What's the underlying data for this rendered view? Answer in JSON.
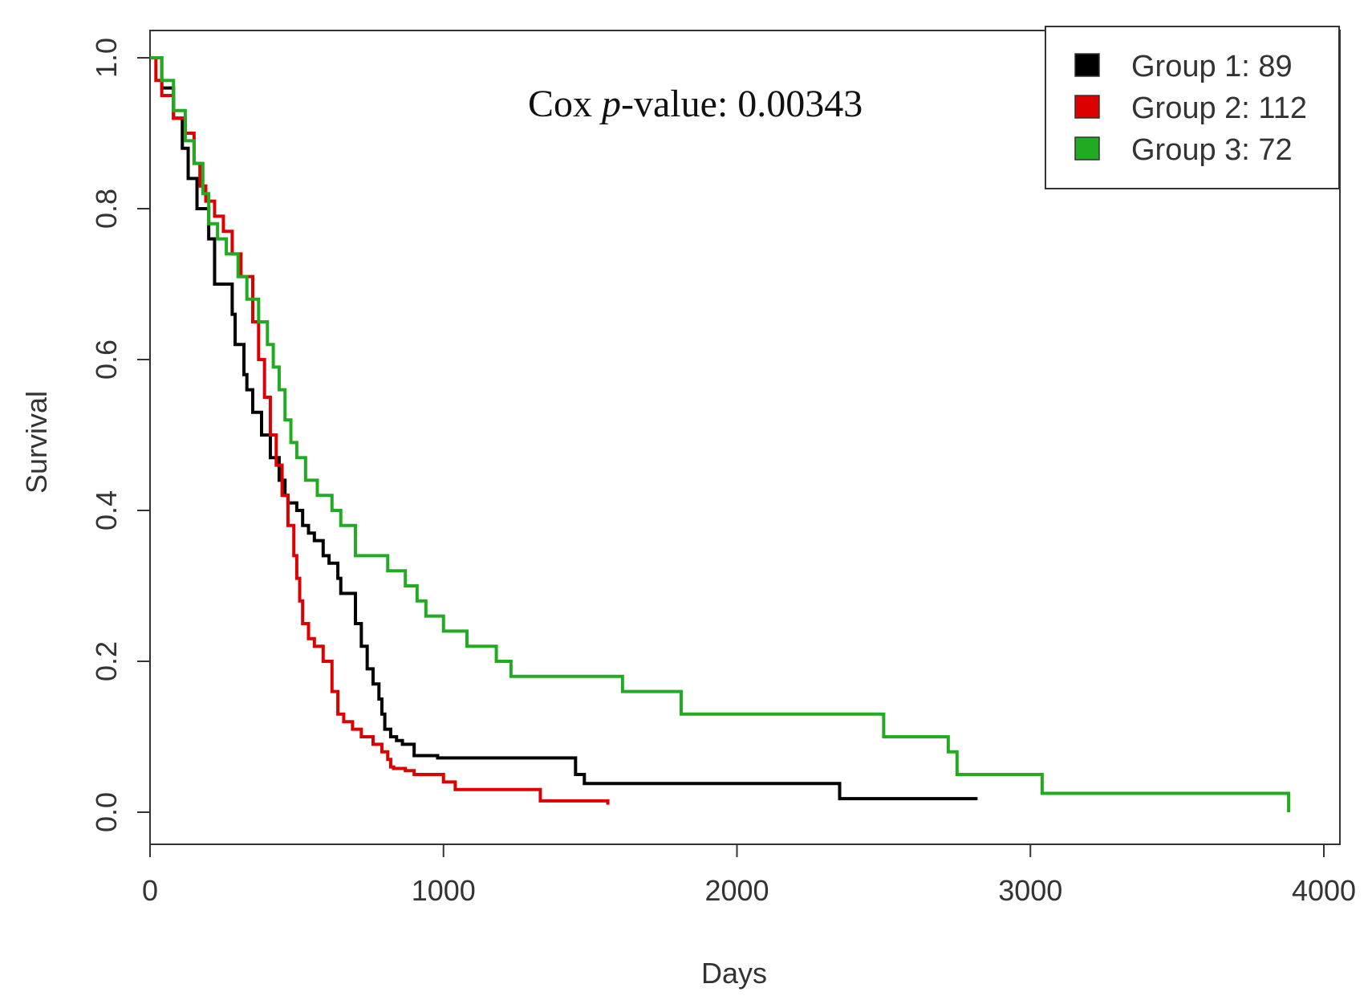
{
  "chart_data": {
    "type": "line",
    "subtype": "kaplan-meier step",
    "title": "",
    "xlabel": "Days",
    "ylabel": "Survival",
    "xlim": [
      0,
      4000
    ],
    "ylim": [
      0,
      1.0
    ],
    "x_ticks": [
      0,
      1000,
      2000,
      3000,
      4000
    ],
    "x_tick_labels": [
      "0",
      "1000",
      "2000",
      "3000",
      "4000"
    ],
    "y_ticks": [
      0.0,
      0.2,
      0.4,
      0.6,
      0.8,
      1.0
    ],
    "y_tick_labels": [
      "0.0",
      "0.2",
      "0.4",
      "0.6",
      "0.8",
      "1.0"
    ],
    "grid": false,
    "legend_position": "top-right",
    "annotation": {
      "prefix": "Cox ",
      "italic": "p",
      "suffix": "-value: 0.00343"
    },
    "series": [
      {
        "name": "Group 1: 89",
        "color": "#000000",
        "x": [
          0,
          40,
          80,
          110,
          130,
          160,
          200,
          220,
          280,
          290,
          320,
          330,
          350,
          380,
          410,
          440,
          460,
          470,
          500,
          520,
          540,
          560,
          590,
          610,
          640,
          650,
          700,
          720,
          740,
          760,
          780,
          790,
          800,
          820,
          840,
          860,
          880,
          900,
          980,
          1000,
          1450,
          1480,
          2350,
          2820
        ],
        "y": [
          1.0,
          0.96,
          0.92,
          0.88,
          0.84,
          0.8,
          0.76,
          0.7,
          0.66,
          0.62,
          0.58,
          0.56,
          0.53,
          0.5,
          0.47,
          0.44,
          0.42,
          0.41,
          0.4,
          0.38,
          0.37,
          0.36,
          0.34,
          0.33,
          0.31,
          0.29,
          0.25,
          0.22,
          0.19,
          0.17,
          0.15,
          0.13,
          0.11,
          0.1,
          0.095,
          0.09,
          0.09,
          0.075,
          0.072,
          0.072,
          0.05,
          0.038,
          0.018,
          0.018
        ]
      },
      {
        "name": "Group 2: 112",
        "color": "#dd0000",
        "x": [
          0,
          20,
          40,
          80,
          120,
          150,
          170,
          190,
          220,
          250,
          280,
          310,
          350,
          370,
          390,
          410,
          430,
          450,
          470,
          490,
          500,
          510,
          520,
          540,
          560,
          590,
          620,
          640,
          660,
          690,
          720,
          760,
          790,
          810,
          820,
          830,
          870,
          900,
          1000,
          1040,
          1080,
          1330,
          1560
        ],
        "y": [
          1.0,
          0.97,
          0.95,
          0.92,
          0.9,
          0.86,
          0.83,
          0.81,
          0.79,
          0.77,
          0.74,
          0.71,
          0.65,
          0.6,
          0.55,
          0.5,
          0.46,
          0.42,
          0.38,
          0.34,
          0.31,
          0.28,
          0.25,
          0.23,
          0.22,
          0.2,
          0.16,
          0.13,
          0.12,
          0.11,
          0.1,
          0.09,
          0.08,
          0.07,
          0.06,
          0.058,
          0.055,
          0.05,
          0.04,
          0.03,
          0.03,
          0.015,
          0.01
        ]
      },
      {
        "name": "Group 3: 72",
        "color": "#22aa22",
        "x": [
          0,
          40,
          80,
          120,
          150,
          180,
          200,
          230,
          260,
          300,
          330,
          370,
          400,
          420,
          440,
          460,
          480,
          500,
          530,
          570,
          620,
          650,
          700,
          810,
          870,
          910,
          940,
          1000,
          1080,
          1180,
          1230,
          1610,
          1810,
          2500,
          2720,
          2750,
          3040,
          3880
        ],
        "y": [
          1.0,
          0.97,
          0.93,
          0.89,
          0.86,
          0.82,
          0.78,
          0.76,
          0.74,
          0.71,
          0.68,
          0.65,
          0.62,
          0.59,
          0.56,
          0.52,
          0.49,
          0.47,
          0.44,
          0.42,
          0.4,
          0.38,
          0.34,
          0.32,
          0.3,
          0.28,
          0.26,
          0.24,
          0.22,
          0.2,
          0.18,
          0.16,
          0.13,
          0.1,
          0.08,
          0.05,
          0.025,
          0.0
        ]
      }
    ]
  }
}
